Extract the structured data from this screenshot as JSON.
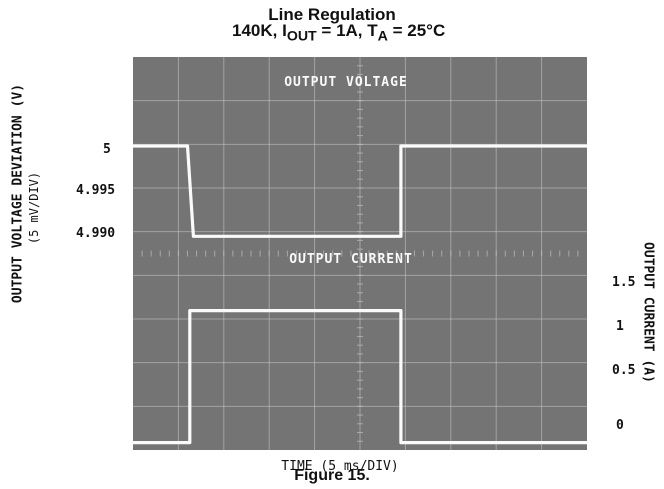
{
  "figure": {
    "title_line1": "Line Regulation",
    "title_line2_parts": [
      "140K, I",
      "OUT",
      " = 1A, T",
      "A",
      " = 25°C"
    ],
    "caption": "Figure 15."
  },
  "chart_data": {
    "type": "line",
    "xlabel": "TIME (5 ms/DIV)",
    "ylabel_left": "OUTPUT VOLTAGE DEVIATION (V)",
    "ylabel_left_sub": "(5 mV/DIV)",
    "ylabel_right": "OUTPUT CURRENT (A)",
    "left_ticks": [
      "5",
      "4.995",
      "4.990"
    ],
    "right_ticks": [
      "1.5",
      "1",
      "0.5",
      "0"
    ],
    "grid": true,
    "annotations": [
      "OUTPUT VOLTAGE",
      "OUTPUT CURRENT"
    ],
    "x_div_ms": 5,
    "x_range_div": [
      0,
      10
    ],
    "series": [
      {
        "name": "OUTPUT VOLTAGE",
        "axis": "left",
        "x_div": [
          0,
          1.2,
          1.33,
          1.45,
          5.9,
          5.9,
          6.1,
          10
        ],
        "y": [
          5.0,
          5.0,
          4.9895,
          4.9895,
          4.9895,
          5.0,
          5.0,
          5.0
        ]
      },
      {
        "name": "OUTPUT CURRENT",
        "axis": "right",
        "x_div": [
          0,
          1.25,
          1.25,
          5.9,
          5.9,
          10
        ],
        "y": [
          0.05,
          0.05,
          1.55,
          1.55,
          0.05,
          0.05
        ]
      }
    ]
  },
  "colors": {
    "screen": "#747474",
    "grid": "#c9c9c9",
    "trace": "#fafafa",
    "text": "#111111"
  }
}
